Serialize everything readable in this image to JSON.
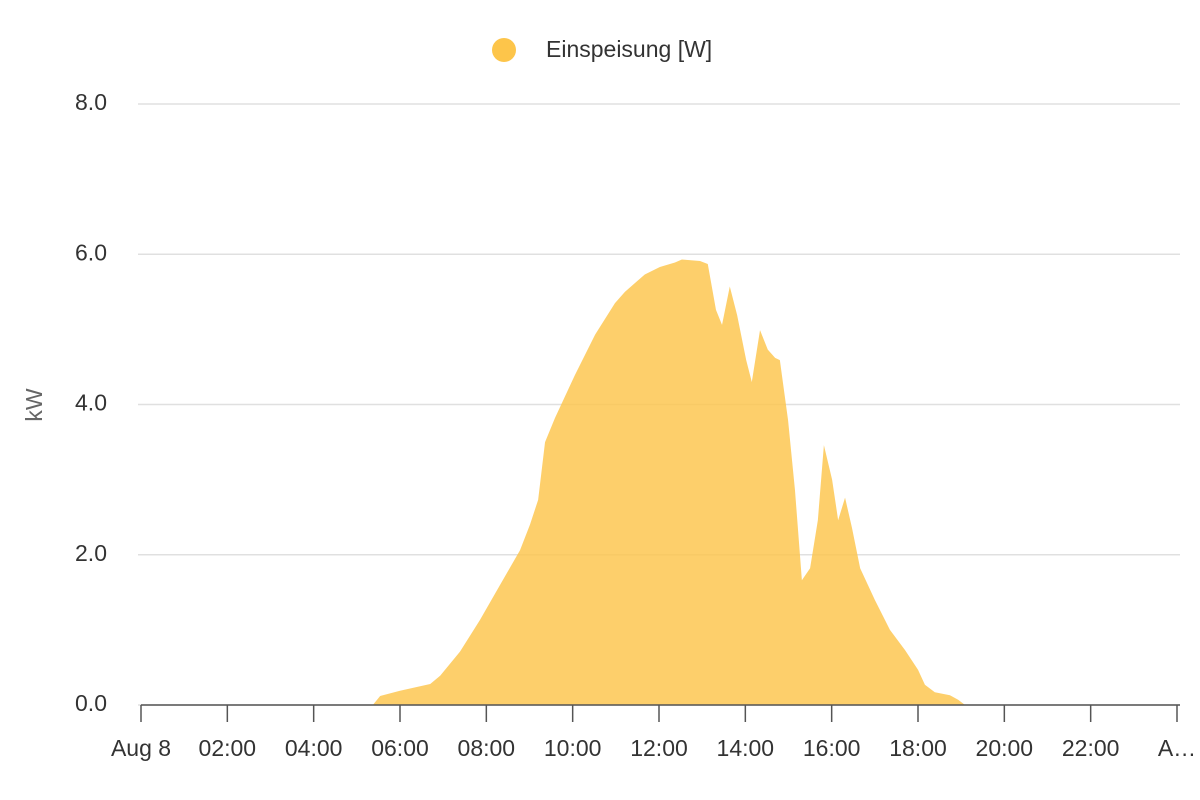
{
  "chart_data": {
    "type": "area",
    "y_label": "kW",
    "x": [
      0,
      5.37,
      5.54,
      6.0,
      6.7,
      6.93,
      7.39,
      7.85,
      8.32,
      8.78,
      9.01,
      9.2,
      9.36,
      9.59,
      10.05,
      10.52,
      10.98,
      11.21,
      11.67,
      12.02,
      12.37,
      12.53,
      12.95,
      13.13,
      13.32,
      13.46,
      13.64,
      13.81,
      14.02,
      14.15,
      14.34,
      14.52,
      14.69,
      14.8,
      14.99,
      15.15,
      15.31,
      15.5,
      15.68,
      15.82,
      16.01,
      16.15,
      16.31,
      16.47,
      16.66,
      17.0,
      17.35,
      17.7,
      18.0,
      18.16,
      18.39,
      18.74,
      18.93,
      19.09,
      24
    ],
    "series": [
      {
        "name": "Einspeisung [W]",
        "color": "#fdc54a",
        "values": [
          0,
          0,
          0.12,
          0.19,
          0.28,
          0.39,
          0.71,
          1.13,
          1.6,
          2.06,
          2.4,
          2.73,
          3.5,
          3.82,
          4.39,
          4.93,
          5.35,
          5.5,
          5.73,
          5.83,
          5.89,
          5.93,
          5.91,
          5.87,
          5.26,
          5.06,
          5.57,
          5.19,
          4.59,
          4.3,
          4.99,
          4.73,
          4.62,
          4.59,
          3.79,
          2.86,
          1.66,
          1.82,
          2.46,
          3.46,
          3.0,
          2.46,
          2.76,
          2.36,
          1.82,
          1.4,
          1.0,
          0.73,
          0.47,
          0.27,
          0.17,
          0.13,
          0.07,
          0,
          0
        ]
      }
    ],
    "xlim": [
      0,
      24
    ],
    "xticks": [
      {
        "value": 0,
        "label": "Aug 8"
      },
      {
        "value": 2,
        "label": "02:00"
      },
      {
        "value": 4,
        "label": "04:00"
      },
      {
        "value": 6,
        "label": "06:00"
      },
      {
        "value": 8,
        "label": "08:00"
      },
      {
        "value": 10,
        "label": "10:00"
      },
      {
        "value": 12,
        "label": "12:00"
      },
      {
        "value": 14,
        "label": "14:00"
      },
      {
        "value": 16,
        "label": "16:00"
      },
      {
        "value": 18,
        "label": "18:00"
      },
      {
        "value": 20,
        "label": "20:00"
      },
      {
        "value": 22,
        "label": "22:00"
      },
      {
        "value": 24,
        "label": "A…"
      }
    ],
    "ylim": [
      0,
      8
    ],
    "yticks": [
      {
        "value": 0,
        "label": "0.0"
      },
      {
        "value": 2,
        "label": "2.0"
      },
      {
        "value": 4,
        "label": "4.0"
      },
      {
        "value": 6,
        "label": "6.0"
      },
      {
        "value": 8,
        "label": "8.0"
      }
    ],
    "grid": true
  }
}
